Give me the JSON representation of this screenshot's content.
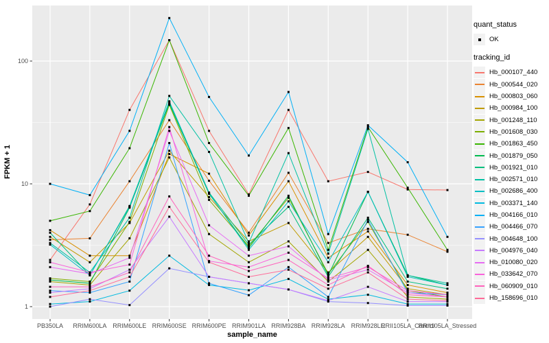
{
  "figure": {
    "background": "#FFFFFF",
    "panel_bg": "#EBEBEB",
    "grid_color": "#FFFFFF",
    "axis_text_color": "#4D4D4D",
    "axis_title_color": "#000000",
    "legend_key_bg": "#F2F2F2",
    "point_color": "#000000"
  },
  "chart_data": {
    "type": "line",
    "title": "",
    "xlabel": "sample_name",
    "ylabel": "FPKM + 1",
    "y_scale": "log10",
    "ylim": [
      1,
      290
    ],
    "grid": true,
    "legend_position": "right",
    "y_ticks": [
      {
        "v": 1,
        "label": "1"
      },
      {
        "v": 10,
        "label": "10"
      },
      {
        "v": 100,
        "label": "100"
      }
    ],
    "y_minor": [
      3.1623,
      31.6228
    ],
    "categories": [
      "PB350LA",
      "RRIM600LA",
      "RRIM600LE",
      "RRIM600SE",
      "RRIM600PE",
      "RRIM901LA",
      "RRIM928BA",
      "RRIM928LA",
      "RRIM928LE",
      "RRII105LA_Control",
      "RRII105LA_Stressed"
    ],
    "legend": {
      "quant_title": "quant_status",
      "ok_label": "OK",
      "series_title": "tracking_id"
    },
    "series": [
      {
        "name": "Hb_000107_440",
        "color": "#F8766D",
        "values": [
          2.4,
          6.8,
          40,
          148,
          27,
          8.2,
          40,
          10.5,
          12.5,
          9.0,
          8.9
        ]
      },
      {
        "name": "Hb_000544_020",
        "color": "#EA8331",
        "values": [
          3.5,
          3.6,
          10.5,
          33,
          10.6,
          4.0,
          12.3,
          3.3,
          4.3,
          3.85,
          2.8
        ]
      },
      {
        "name": "Hb_000803_060",
        "color": "#D89000",
        "values": [
          4.2,
          2.6,
          2.6,
          17.5,
          12.1,
          3.8,
          10.5,
          2.5,
          4.1,
          1.5,
          1.3
        ]
      },
      {
        "name": "Hb_000984_100",
        "color": "#C09B00",
        "values": [
          3.7,
          2.3,
          4.8,
          18.6,
          7.8,
          3.4,
          4.8,
          1.9,
          3.7,
          1.4,
          1.25
        ]
      },
      {
        "name": "Hb_001248_110",
        "color": "#A3A500",
        "values": [
          1.6,
          1.5,
          3.6,
          16.4,
          3.9,
          2.3,
          3.4,
          1.6,
          2.9,
          1.2,
          1.15
        ]
      },
      {
        "name": "Hb_001608_030",
        "color": "#7CAE00",
        "values": [
          1.7,
          1.6,
          4.9,
          44,
          7.4,
          3.1,
          7.7,
          1.85,
          4.9,
          1.35,
          1.2
        ]
      },
      {
        "name": "Hb_001863_450",
        "color": "#39B600",
        "values": [
          5.0,
          6.0,
          19.5,
          148,
          21.5,
          8.0,
          28.5,
          2.9,
          29,
          9.3,
          2.9
        ]
      },
      {
        "name": "Hb_001879_050",
        "color": "#00BB4E",
        "values": [
          1.65,
          1.55,
          6.4,
          45,
          8.3,
          3.0,
          8.0,
          1.8,
          8.6,
          1.8,
          1.5
        ]
      },
      {
        "name": "Hb_001921_010",
        "color": "#00BF7D",
        "values": [
          4.0,
          1.8,
          6.6,
          46,
          8.5,
          3.2,
          6.5,
          1.75,
          5.3,
          1.6,
          1.4
        ]
      },
      {
        "name": "Hb_002571_010",
        "color": "#00C1A3",
        "values": [
          3.3,
          1.9,
          5.3,
          52,
          18.2,
          3.3,
          17.8,
          2.7,
          28,
          1.8,
          1.55
        ]
      },
      {
        "name": "Hb_002686_400",
        "color": "#00BFC4",
        "values": [
          3.2,
          1.8,
          6.5,
          47,
          8.4,
          2.9,
          7.2,
          2.3,
          8.6,
          1.75,
          1.5
        ]
      },
      {
        "name": "Hb_003371_140",
        "color": "#00BAE0",
        "values": [
          1.05,
          1.1,
          1.35,
          2.6,
          1.5,
          1.36,
          1.68,
          1.15,
          1.25,
          1.05,
          1.05
        ]
      },
      {
        "name": "Hb_004166_010",
        "color": "#00B0F6",
        "values": [
          10,
          8.1,
          27,
          224,
          51,
          17,
          56,
          3.9,
          30,
          15,
          3.7
        ]
      },
      {
        "name": "Hb_004466_070",
        "color": "#35A2FF",
        "values": [
          1.35,
          1.3,
          1.6,
          21.5,
          1.55,
          1.24,
          2.1,
          1.2,
          5.1,
          1.3,
          1.25
        ]
      },
      {
        "name": "Hb_004648_100",
        "color": "#9590FF",
        "values": [
          1.0,
          1.15,
          1.03,
          2.05,
          1.75,
          1.55,
          1.38,
          1.1,
          1.07,
          1.02,
          1.02
        ]
      },
      {
        "name": "Hb_004976_040",
        "color": "#C77CFF",
        "values": [
          1.3,
          1.4,
          2.0,
          5.4,
          1.75,
          1.55,
          1.38,
          1.12,
          1.45,
          1.1,
          1.1
        ]
      },
      {
        "name": "Hb_010080_020",
        "color": "#E76BF3",
        "values": [
          2.1,
          1.85,
          2.5,
          27,
          4.6,
          2.6,
          3.1,
          1.65,
          2.0,
          1.3,
          1.2
        ]
      },
      {
        "name": "Hb_033642_070",
        "color": "#FA62DB",
        "values": [
          2.3,
          1.9,
          2.2,
          29,
          2.35,
          2.1,
          2.75,
          1.7,
          2.1,
          1.35,
          1.25
        ]
      },
      {
        "name": "Hb_060909_010",
        "color": "#FF62BC",
        "values": [
          1.45,
          1.45,
          1.9,
          7.9,
          2.6,
          1.95,
          2.4,
          1.5,
          2.15,
          1.25,
          1.2
        ]
      },
      {
        "name": "Hb_158696_010",
        "color": "#FF6A98",
        "values": [
          1.2,
          1.35,
          1.75,
          6.5,
          2.3,
          1.75,
          2.0,
          1.4,
          1.9,
          1.15,
          1.12
        ]
      }
    ]
  }
}
